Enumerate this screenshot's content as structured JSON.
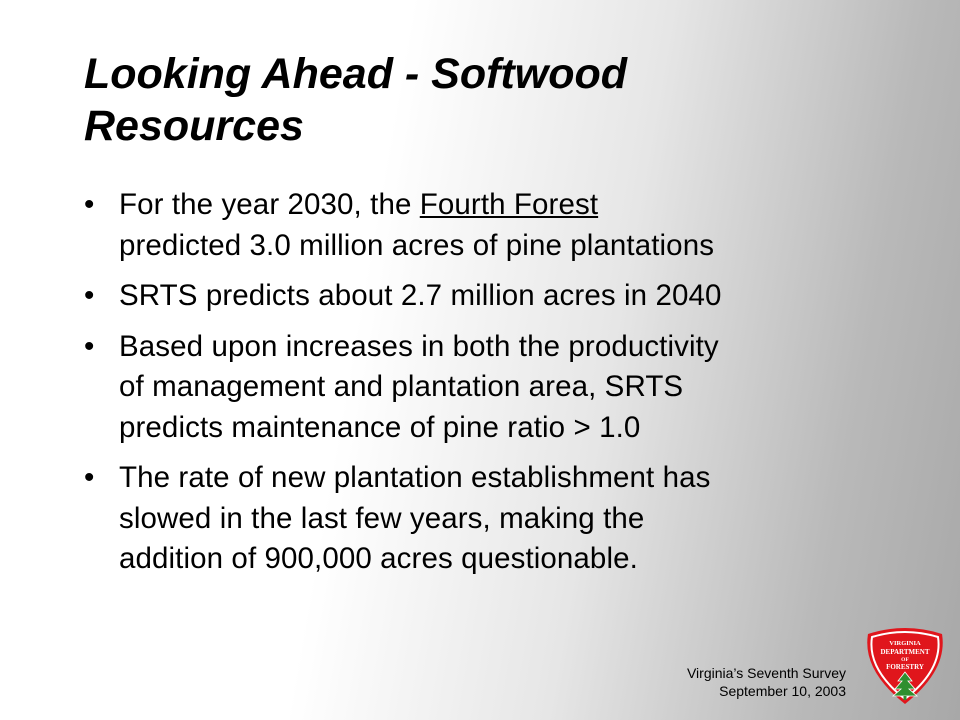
{
  "slide": {
    "title_line1": "Looking Ahead - Softwood",
    "title_line2": "Resources",
    "bullet_symbol": "•",
    "bullets": [
      {
        "lines": [
          {
            "before": "For the year 2030, the ",
            "underlined": "Fourth Forest"
          },
          {
            "text": "predicted 3.0 million acres of pine plantations"
          }
        ]
      },
      {
        "lines": [
          {
            "text": "SRTS predicts about 2.7 million acres in 2040"
          }
        ]
      },
      {
        "lines": [
          {
            "text": "Based upon increases in both the productivity"
          },
          {
            "text": "of management and plantation area, SRTS"
          },
          {
            "text": "predicts maintenance of pine ratio > 1.0"
          }
        ]
      },
      {
        "lines": [
          {
            "text": "The rate of new plantation establishment has"
          },
          {
            "text": "slowed in the last few years, making the"
          },
          {
            "text": "addition of 900,000 acres questionable."
          }
        ]
      }
    ]
  },
  "footer": {
    "line1": "Virginia’s Seventh Survey",
    "line2": "September 10, 2003"
  },
  "logo": {
    "line1": "VIRGINIA",
    "line2": "DEPARTMENT",
    "line3": "OF",
    "line4": "FORESTRY",
    "icon": "tree-icon",
    "colors": {
      "shield": "#e0161c",
      "outline": "#ffffff",
      "tree": "#2f8f2f"
    }
  }
}
